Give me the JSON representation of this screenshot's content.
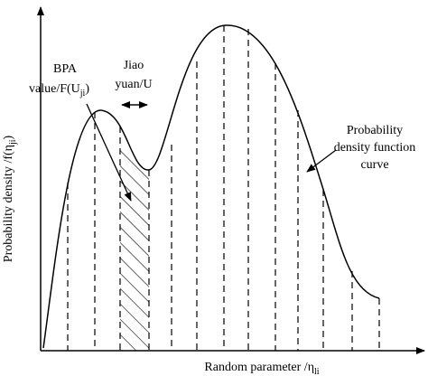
{
  "labels": {
    "bpa": {
      "line1": "BPA",
      "line2": "value/F(U",
      "line2_sub": "ji",
      "line2_end": ")"
    },
    "jiao_yuan": {
      "line1": "Jiao",
      "line2": "yuan/U"
    },
    "curve": {
      "line1": "Probability",
      "line2": "density function",
      "line3": "curve"
    }
  },
  "axes": {
    "x_label": {
      "text": "Random parameter /η",
      "sub": "li"
    },
    "y_label": {
      "text": "Probability density /f(η",
      "sub": "ji",
      "end": ")"
    }
  }
}
